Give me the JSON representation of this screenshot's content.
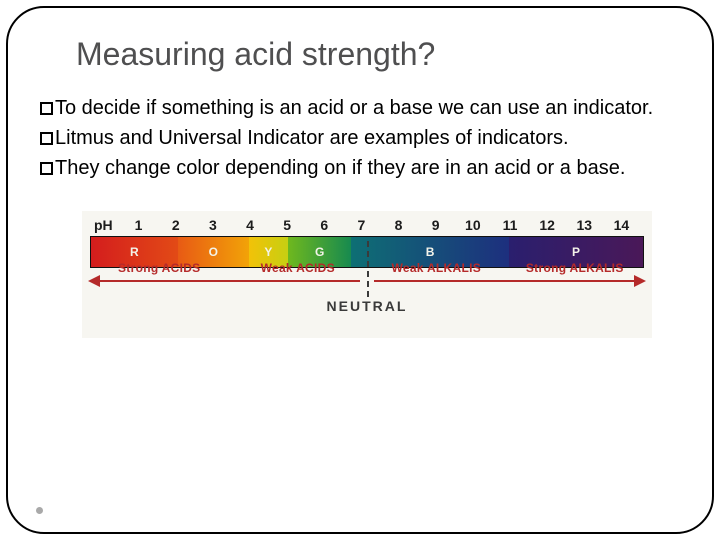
{
  "title": "Measuring acid strength?",
  "bullets": {
    "b1": "To decide if something is an acid or a base we can use an indicator.",
    "b2": "Litmus and Universal Indicator are examples of indicators.",
    "b3": "They change color depending on if they are in an acid or a base."
  },
  "ph_chart": {
    "label_prefix": "pH",
    "numbers": [
      "1",
      "2",
      "3",
      "4",
      "5",
      "6",
      "7",
      "8",
      "9",
      "10",
      "11",
      "12",
      "13",
      "14"
    ],
    "segments": [
      {
        "label": "R",
        "width_units": 2.2,
        "start_color": "#d41d1d",
        "end_color": "#e24a16"
      },
      {
        "label": "O",
        "width_units": 1.8,
        "start_color": "#e85a14",
        "end_color": "#f2a308"
      },
      {
        "label": "Y",
        "width_units": 1.0,
        "start_color": "#f2c208",
        "end_color": "#c7cf12"
      },
      {
        "label": "G",
        "width_units": 1.6,
        "start_color": "#6fb81e",
        "end_color": "#178a4f"
      },
      {
        "label": "B",
        "width_units": 4.0,
        "start_color": "#0e6f74",
        "end_color": "#1d2f7e"
      },
      {
        "label": "P",
        "width_units": 3.4,
        "start_color": "#2a1f6e",
        "end_color": "#4a1858"
      }
    ],
    "below": {
      "strong_acids": "Strong ACIDS",
      "weak_acids": "Weak ACIDS",
      "weak_alkalis": "Weak ALKALIS",
      "strong_alkalis": "Strong ALKALIS",
      "neutral": "NEUTRAL"
    },
    "colors": {
      "arrow": "#b52a2a",
      "label_text": "#b52a2a",
      "neutral_text": "#3a3a3a",
      "band_bg": "#f7f6f1"
    }
  }
}
